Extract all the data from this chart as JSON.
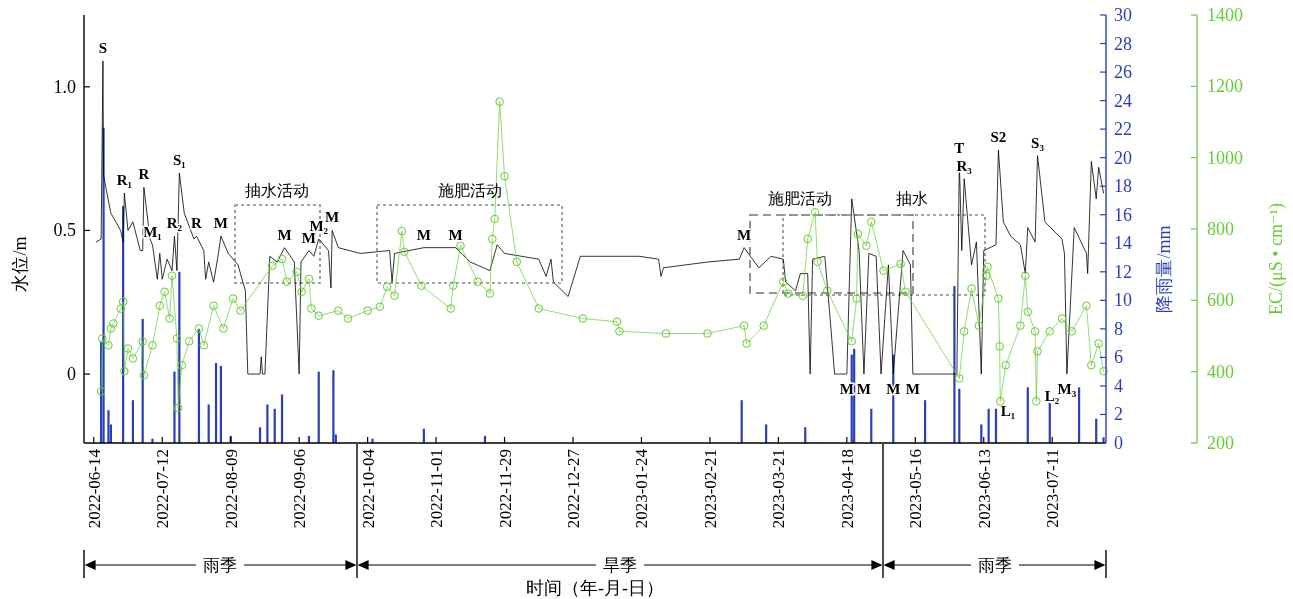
{
  "chart_data": {
    "type": "line",
    "xlabel": "时间（年-月-日）",
    "ylabel": "水位/m",
    "y2label": "降雨量/mm",
    "y3label": "EC/(μS • cm⁻¹)",
    "xlim": [
      "2022-06-10",
      "2023-08-02"
    ],
    "xticks": [
      "2022-06-14",
      "2022-07-12",
      "2022-08-09",
      "2022-09-06",
      "2022-10-04",
      "2022-11-01",
      "2022-11-29",
      "2022-12-27",
      "2023-01-24",
      "2023-02-21",
      "2023-03-21",
      "2023-04-18",
      "2023-05-16",
      "2023-06-13",
      "2023-07-11"
    ],
    "ylim": [
      -0.24,
      1.25
    ],
    "yticks": [
      0,
      0.5,
      {
        "value": 1,
        "label": "1.0"
      }
    ],
    "y2lim": [
      0,
      30
    ],
    "y2ticks": [
      0,
      2,
      4,
      6,
      8,
      10,
      12,
      14,
      16,
      18,
      20,
      22,
      24,
      26,
      28,
      30
    ],
    "y3lim": [
      200,
      1400
    ],
    "y3ticks": [
      200,
      400,
      600,
      800,
      1000,
      1200,
      1400
    ],
    "series": [
      {
        "type": "bar",
        "axis": "y2",
        "color": "#2a3fb5",
        "x": [
          "2022-06-17",
          "2022-06-18",
          "2022-06-20",
          "2022-06-21",
          "2022-06-26",
          "2022-06-30",
          "2022-07-04",
          "2022-07-08",
          "2022-07-17",
          "2022-07-19",
          "2022-07-27",
          "2022-07-31",
          "2022-08-03",
          "2022-08-05",
          "2022-08-09",
          "2022-08-21",
          "2022-08-24",
          "2022-08-27",
          "2022-08-30",
          "2022-09-10",
          "2022-09-14",
          "2022-09-20",
          "2022-09-21",
          "2022-10-06",
          "2022-10-27",
          "2022-11-21",
          "2023-03-06",
          "2023-03-16",
          "2023-04-01",
          "2023-04-20",
          "2023-04-21",
          "2023-04-28",
          "2023-05-07",
          "2023-05-20",
          "2023-06-01",
          "2023-06-03",
          "2023-06-12",
          "2023-06-15",
          "2023-06-18",
          "2023-07-01",
          "2023-07-10",
          "2023-07-22",
          "2023-07-29",
          "2023-08-01"
        ],
        "values": [
          7.1,
          22.1,
          2.3,
          1.3,
          16.6,
          3.0,
          8.7,
          0.3,
          5.0,
          12.0,
          8.0,
          2.7,
          5.6,
          5.4,
          0.5,
          1.1,
          2.7,
          2.4,
          3.4,
          0.5,
          5.0,
          5.1,
          0.6,
          0.3,
          1.0,
          0.5,
          3.0,
          1.3,
          1.1,
          6.2,
          6.6,
          2.4,
          6.2,
          3.0,
          11.0,
          3.8,
          1.3,
          2.4,
          2.4,
          3.9,
          2.8,
          3.9,
          1.7,
          0.4
        ]
      },
      {
        "marker": "none",
        "color": "#000000",
        "x": [
          "2022-06-15",
          "2022-06-17",
          "2022-06-17T18:00",
          "2022-06-18",
          "2022-06-21",
          "2022-06-25",
          "2022-06-26",
          "2022-06-26T12:00",
          "2022-06-28",
          "2022-06-30",
          "2022-07-03",
          "2022-07-04",
          "2022-07-04T12:00",
          "2022-07-07",
          "2022-07-08",
          "2022-07-10",
          "2022-07-11",
          "2022-07-12",
          "2022-07-14",
          "2022-07-16",
          "2022-07-17",
          "2022-07-18",
          "2022-07-19",
          "2022-07-21",
          "2022-07-25",
          "2022-07-26",
          "2022-07-29",
          "2022-07-29T18:00",
          "2022-07-31",
          "2022-08-02",
          "2022-08-04",
          "2022-08-05",
          "2022-08-08",
          "2022-08-12",
          "2022-08-14",
          "2022-08-15",
          "2022-08-16",
          "2022-08-21",
          "2022-08-21T12:00",
          "2022-08-22",
          "2022-08-23",
          "2022-08-25",
          "2022-08-28",
          "2022-08-31",
          "2022-09-04",
          "2022-09-06",
          "2022-09-06T18:00",
          "2022-09-10",
          "2022-09-12",
          "2022-09-14",
          "2022-09-18",
          "2022-09-19",
          "2022-09-19T12:00",
          "2022-09-22",
          "2022-10-01",
          "2022-10-13",
          "2022-10-14",
          "2022-10-15",
          "2022-10-27",
          "2022-11-09",
          "2022-11-15",
          "2022-11-23",
          "2022-11-26",
          "2022-11-29",
          "2022-12-13",
          "2022-12-16",
          "2022-12-18",
          "2022-12-19",
          "2022-12-25",
          "2022-12-30",
          "2023-01-23",
          "2023-01-31",
          "2023-02-01",
          "2023-02-02",
          "2023-02-20",
          "2023-03-05",
          "2023-03-07",
          "2023-03-13",
          "2023-03-18",
          "2023-03-23",
          "2023-03-24",
          "2023-03-28",
          "2023-03-30",
          "2023-04-02",
          "2023-04-03",
          "2023-04-04",
          "2023-04-09",
          "2023-04-11",
          "2023-04-13",
          "2023-04-18",
          "2023-04-20",
          "2023-04-23",
          "2023-04-25",
          "2023-04-27",
          "2023-04-30",
          "2023-05-02",
          "2023-05-05",
          "2023-05-07",
          "2023-05-11",
          "2023-05-14",
          "2023-05-15",
          "2023-06-02",
          "2023-06-03",
          "2023-06-04",
          "2023-06-05",
          "2023-06-08",
          "2023-06-10",
          "2023-06-12",
          "2023-06-13",
          "2023-06-18",
          "2023-06-19",
          "2023-06-21",
          "2023-06-24",
          "2023-06-28",
          "2023-06-30",
          "2023-07-01",
          "2023-07-04",
          "2023-07-05",
          "2023-07-08",
          "2023-07-15",
          "2023-07-16",
          "2023-07-17",
          "2023-07-20",
          "2023-07-25",
          "2023-07-25T12:00",
          "2023-07-27",
          "2023-07-29",
          "2023-07-30",
          "2023-08-01"
        ],
        "values": [
          0.46,
          0.47,
          1.09,
          0.69,
          0.56,
          0.5,
          0.46,
          0.63,
          0.5,
          0.53,
          0.43,
          0.43,
          0.65,
          0.47,
          0.45,
          0.33,
          0.42,
          0.33,
          0.4,
          0.36,
          0.48,
          0.36,
          0.7,
          0.56,
          0.47,
          0.48,
          0.43,
          0.33,
          0.39,
          0.32,
          0.42,
          0.48,
          0.42,
          0.38,
          0.32,
          0.29,
          0.0,
          0.0,
          0.06,
          0.0,
          0.0,
          0.41,
          0.39,
          0.44,
          0.39,
          0.0,
          0.39,
          0.43,
          0.41,
          0.47,
          0.43,
          0.3,
          0.5,
          0.44,
          0.42,
          0.43,
          0.32,
          0.42,
          0.44,
          0.44,
          0.39,
          0.36,
          0.45,
          0.42,
          0.4,
          0.34,
          0.4,
          0.32,
          0.27,
          0.41,
          0.41,
          0.4,
          0.34,
          0.37,
          0.39,
          0.4,
          0.44,
          0.37,
          0.41,
          0.4,
          0.32,
          0.29,
          0.35,
          0.35,
          0.0,
          0.4,
          0.41,
          0.21,
          0.0,
          0.0,
          0.61,
          0.43,
          0.0,
          0.42,
          0.41,
          0.0,
          0.38,
          0.0,
          0.43,
          0.38,
          0.0,
          0.0,
          0.74,
          0.43,
          0.68,
          0.38,
          0.46,
          0.0,
          0.43,
          0.45,
          0.78,
          0.53,
          0.48,
          0.45,
          0.35,
          0.51,
          0.46,
          0.76,
          0.53,
          0.47,
          0.42,
          0.0,
          0.51,
          0.42,
          0.35,
          0.74,
          0.61,
          0.72,
          0.63
        ]
      },
      {
        "type": "line",
        "axis": "y3",
        "marker": "circle",
        "color": "#66cc33",
        "x": [
          "2022-06-17",
          "2022-06-17T12:00",
          "2022-06-20",
          "2022-06-21",
          "2022-06-22",
          "2022-06-25",
          "2022-06-26",
          "2022-06-26T12:00",
          "2022-06-28",
          "2022-06-30",
          "2022-07-04",
          "2022-07-04T12:00",
          "2022-07-08",
          "2022-07-11",
          "2022-07-13",
          "2022-07-15",
          "2022-07-16",
          "2022-07-18",
          "2022-07-18T12:00",
          "2022-07-20",
          "2022-07-23",
          "2022-07-27",
          "2022-07-29",
          "2022-08-02",
          "2022-08-06",
          "2022-08-10",
          "2022-08-13",
          "2022-08-26",
          "2022-08-30",
          "2022-09-01",
          "2022-09-05",
          "2022-09-07",
          "2022-09-10",
          "2022-09-11",
          "2022-09-14",
          "2022-09-22",
          "2022-09-26",
          "2022-10-04",
          "2022-10-09",
          "2022-10-12",
          "2022-10-15",
          "2022-10-18",
          "2022-10-19",
          "2022-10-26",
          "2022-11-07",
          "2022-11-08",
          "2022-11-11",
          "2022-11-18",
          "2022-11-23",
          "2022-11-24",
          "2022-11-25",
          "2022-11-27",
          "2022-11-29",
          "2022-12-04",
          "2022-12-13",
          "2022-12-31",
          "2023-01-14",
          "2023-01-15",
          "2023-02-03",
          "2023-02-20",
          "2023-03-07",
          "2023-03-08",
          "2023-03-15",
          "2023-03-23",
          "2023-03-25",
          "2023-03-31",
          "2023-04-02",
          "2023-04-05",
          "2023-04-06",
          "2023-04-10",
          "2023-04-20",
          "2023-04-22",
          "2023-04-22T12:00",
          "2023-04-26",
          "2023-04-28",
          "2023-05-03",
          "2023-05-10",
          "2023-05-12",
          "2023-06-03",
          "2023-06-05",
          "2023-06-08",
          "2023-06-11",
          "2023-06-14",
          "2023-06-14T12:00",
          "2023-06-19",
          "2023-06-19T12:00",
          "2023-06-19T18:00",
          "2023-06-22",
          "2023-06-28",
          "2023-06-30",
          "2023-07-01",
          "2023-07-04",
          "2023-07-04T12:00",
          "2023-07-05",
          "2023-07-10",
          "2023-07-15",
          "2023-07-19",
          "2023-07-25",
          "2023-07-27",
          "2023-07-30",
          "2023-08-01"
        ],
        "values": [
          345,
          493,
          474,
          521,
          535,
          577,
          596,
          401,
          465,
          437,
          485,
          390,
          474,
          585,
          624,
          549,
          669,
          493,
          298,
          418,
          485,
          521,
          474,
          585,
          521,
          605,
          571,
          697,
          716,
          652,
          680,
          624,
          660,
          577,
          557,
          571,
          549,
          571,
          582,
          638,
          613,
          794,
          736,
          641,
          577,
          641,
          753,
          652,
          619,
          772,
          828,
          1157,
          948,
          708,
          577,
          549,
          540,
          513,
          507,
          507,
          529,
          479,
          529,
          652,
          619,
          613,
          772,
          847,
          708,
          627,
          485,
          605,
          786,
          753,
          820,
          683,
          702,
          624,
          381,
          513,
          633,
          529,
          669,
          694,
          605,
          471,
          317,
          418,
          529,
          669,
          568,
          513,
          317,
          457,
          513,
          549,
          513,
          585,
          418,
          479,
          401
        ]
      }
    ],
    "annotations": [
      {
        "text": "S",
        "x": "2022-06-17T18:00",
        "y": 1.09
      },
      {
        "text": "R₁",
        "x": "2022-06-26T12:00",
        "y": 0.63
      },
      {
        "text": "R",
        "x": "2022-07-04T12:00",
        "y": 0.65
      },
      {
        "text": "M₁",
        "x": "2022-07-08",
        "y": 0.45
      },
      {
        "text": "R₂",
        "x": "2022-07-17",
        "y": 0.48
      },
      {
        "text": "S₁",
        "x": "2022-07-19",
        "y": 0.7
      },
      {
        "text": "R",
        "x": "2022-07-26",
        "y": 0.48
      },
      {
        "text": "M",
        "x": "2022-08-05",
        "y": 0.48
      },
      {
        "text": "M",
        "x": "2022-08-31",
        "y": 0.44
      },
      {
        "text": "M",
        "x": "2022-09-10",
        "y": 0.43
      },
      {
        "text": "M₂",
        "x": "2022-09-14",
        "y": 0.47
      },
      {
        "text": "M",
        "x": "2022-09-19T12:00",
        "y": 0.5
      },
      {
        "text": "M",
        "x": "2022-10-27",
        "y": 0.44
      },
      {
        "text": "M",
        "x": "2022-11-09",
        "y": 0.44
      },
      {
        "text": "M",
        "x": "2023-03-07",
        "y": 0.44
      },
      {
        "text": "T",
        "x": "2023-06-03",
        "y": 0.74
      },
      {
        "text": "R₃",
        "x": "2023-06-05",
        "y": 0.68
      },
      {
        "text": "S2",
        "x": "2023-06-19",
        "y": 0.78
      },
      {
        "text": "S₃",
        "x": "2023-07-05",
        "y": 0.76
      },
      {
        "text": "M",
        "x": "2023-04-18",
        "y": 0
      },
      {
        "text": "M",
        "x": "2023-04-25",
        "y": 0
      },
      {
        "text": "M",
        "x": "2023-05-07",
        "y": 0
      },
      {
        "text": "M",
        "x": "2023-05-15",
        "y": 0
      },
      {
        "text": "M₃",
        "x": "2023-07-17",
        "y": 0
      },
      "L₁",
      "L₂",
      "抽水活动",
      "施肥活动",
      "施肥活动",
      "抽水",
      "雨季",
      "旱季",
      "雨季"
    ]
  }
}
